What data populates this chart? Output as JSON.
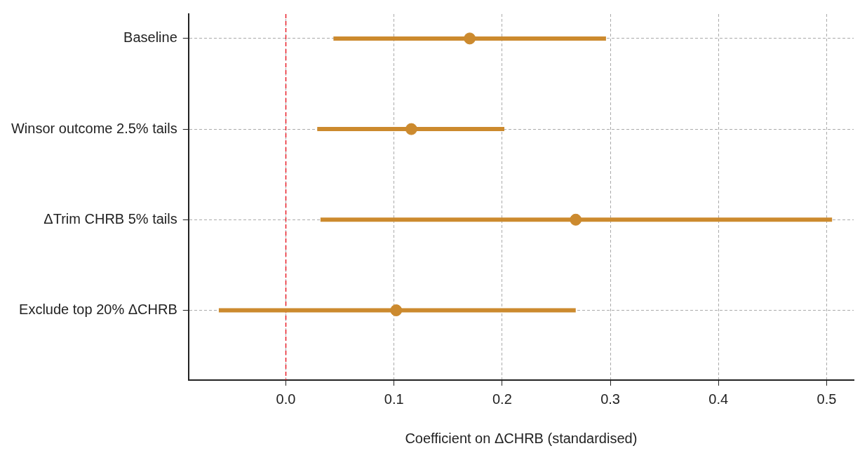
{
  "chart_data": {
    "type": "scatter",
    "orientation": "horizontal",
    "xlabel": "Coefficient on ΔCHRB (standardised)",
    "categories": [
      "Baseline",
      "Winsor outcome 2.5% tails",
      "ΔTrim CHRB 5% tails",
      "Exclude top 20% ΔCHRB"
    ],
    "values": [
      0.17,
      0.116,
      0.268,
      0.102
    ],
    "errors": [
      [
        0.044,
        0.296
      ],
      [
        0.029,
        0.202
      ],
      [
        0.032,
        0.505
      ],
      [
        -0.062,
        0.268
      ]
    ],
    "color": "#cc8a2e",
    "marker": "circle",
    "xlim": [
      -0.09,
      0.525
    ],
    "xticks": [
      {
        "value": 0,
        "label": "0.0"
      },
      {
        "value": 0.1,
        "label": "0.1"
      },
      {
        "value": 0.2,
        "label": "0.2"
      },
      {
        "value": 0.3,
        "label": "0.3"
      },
      {
        "value": 0.4,
        "label": "0.4"
      },
      {
        "value": 0.5,
        "label": "0.5"
      }
    ],
    "ref_lines": [
      {
        "axis": "x",
        "value": 0,
        "color": "#e8202a",
        "line_style": "dashed"
      }
    ],
    "grid": true,
    "legend": false
  }
}
